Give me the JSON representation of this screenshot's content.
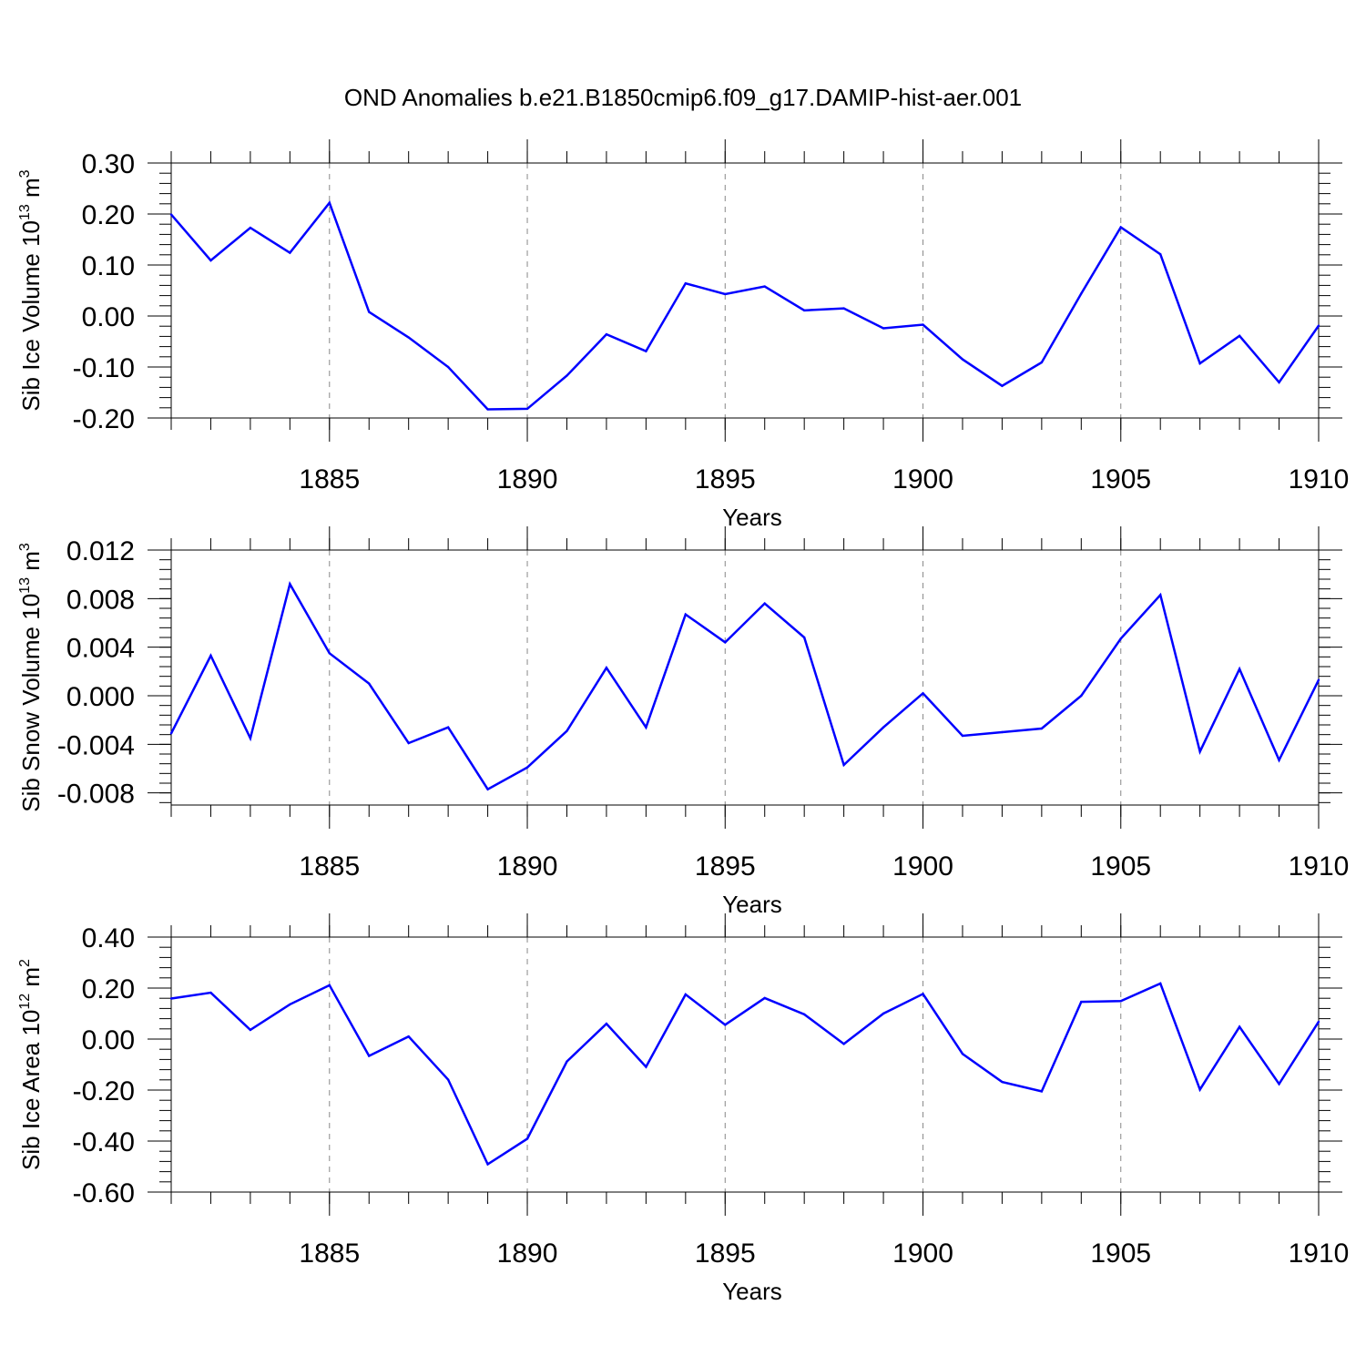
{
  "title": "OND Anomalies b.e21.B1850cmip6.f09_g17.DAMIP-hist-aer.001",
  "colors": {
    "line": "#0000ff",
    "axis": "#000000",
    "grid": "#888888"
  },
  "chart_data": [
    {
      "type": "line",
      "xlabel": "Years",
      "ylabel_main": "Sib Ice Volume 10",
      "ylabel_sup1": "13",
      "ylabel_unit": " m",
      "ylabel_sup2": "3",
      "x_ticks": [
        "1885",
        "1890",
        "1895",
        "1900",
        "1905",
        "1910"
      ],
      "y_ticks": [
        "0.30",
        "0.20",
        "0.10",
        "0.00",
        "-0.10",
        "-0.20"
      ],
      "xlim": [
        1881,
        1910
      ],
      "ylim": [
        -0.2,
        0.3
      ],
      "grid": "dashed vertical lines at major x ticks",
      "x": [
        1881,
        1882,
        1883,
        1884,
        1885,
        1886,
        1887,
        1888,
        1889,
        1890,
        1891,
        1892,
        1893,
        1894,
        1895,
        1896,
        1897,
        1898,
        1899,
        1900,
        1901,
        1902,
        1903,
        1904,
        1905,
        1906,
        1907,
        1908,
        1909,
        1910
      ],
      "values": [
        0.199,
        0.109,
        0.173,
        0.124,
        0.222,
        0.008,
        -0.042,
        -0.1,
        -0.183,
        -0.182,
        -0.117,
        -0.036,
        -0.069,
        0.064,
        0.043,
        0.058,
        0.011,
        0.015,
        -0.024,
        -0.017,
        -0.085,
        -0.137,
        -0.091,
        0.044,
        0.174,
        0.121,
        -0.093,
        -0.039,
        -0.13,
        -0.019
      ]
    },
    {
      "type": "line",
      "xlabel": "Years",
      "ylabel_main": "Sib Snow Volume 10",
      "ylabel_sup1": "13",
      "ylabel_unit": " m",
      "ylabel_sup2": "3",
      "x_ticks": [
        "1885",
        "1890",
        "1895",
        "1900",
        "1905",
        "1910"
      ],
      "y_ticks": [
        "0.012",
        "0.008",
        "0.004",
        "0.000",
        "-0.004",
        "-0.008"
      ],
      "xlim": [
        1881,
        1910
      ],
      "ylim": [
        -0.009,
        0.012
      ],
      "grid": "dashed vertical lines at major x ticks",
      "x": [
        1881,
        1882,
        1883,
        1884,
        1885,
        1886,
        1887,
        1888,
        1889,
        1890,
        1891,
        1892,
        1893,
        1894,
        1895,
        1896,
        1897,
        1898,
        1899,
        1900,
        1901,
        1902,
        1903,
        1904,
        1905,
        1906,
        1907,
        1908,
        1909,
        1910
      ],
      "values": [
        -0.0031,
        0.0033,
        -0.0035,
        0.0092,
        0.0035,
        0.001,
        -0.0039,
        -0.0026,
        -0.0077,
        -0.0059,
        -0.0029,
        0.0023,
        -0.0026,
        0.0067,
        0.0044,
        0.0076,
        0.0048,
        -0.0057,
        -0.0026,
        0.0002,
        -0.0033,
        -0.003,
        -0.0027,
        0.0,
        0.0047,
        0.0083,
        -0.0046,
        0.0022,
        -0.0053,
        0.0013
      ]
    },
    {
      "type": "line",
      "xlabel": "Years",
      "ylabel_main": "Sib Ice Area 10",
      "ylabel_sup1": "12",
      "ylabel_unit": " m",
      "ylabel_sup2": "2",
      "x_ticks": [
        "1885",
        "1890",
        "1895",
        "1900",
        "1905",
        "1910"
      ],
      "y_ticks": [
        "0.40",
        "0.20",
        "0.00",
        "-0.20",
        "-0.40",
        "-0.60"
      ],
      "xlim": [
        1881,
        1910
      ],
      "ylim": [
        -0.6,
        0.4
      ],
      "grid": "dashed vertical lines at major x ticks",
      "x": [
        1881,
        1882,
        1883,
        1884,
        1885,
        1886,
        1887,
        1888,
        1889,
        1890,
        1891,
        1892,
        1893,
        1894,
        1895,
        1896,
        1897,
        1898,
        1899,
        1900,
        1901,
        1902,
        1903,
        1904,
        1905,
        1906,
        1907,
        1908,
        1909,
        1910
      ],
      "values": [
        0.159,
        0.182,
        0.036,
        0.136,
        0.211,
        -0.066,
        0.01,
        -0.159,
        -0.491,
        -0.391,
        -0.088,
        0.06,
        -0.109,
        0.175,
        0.056,
        0.161,
        0.097,
        -0.019,
        0.1,
        0.177,
        -0.058,
        -0.168,
        -0.205,
        0.146,
        0.149,
        0.218,
        -0.198,
        0.048,
        -0.176,
        0.068
      ]
    }
  ]
}
